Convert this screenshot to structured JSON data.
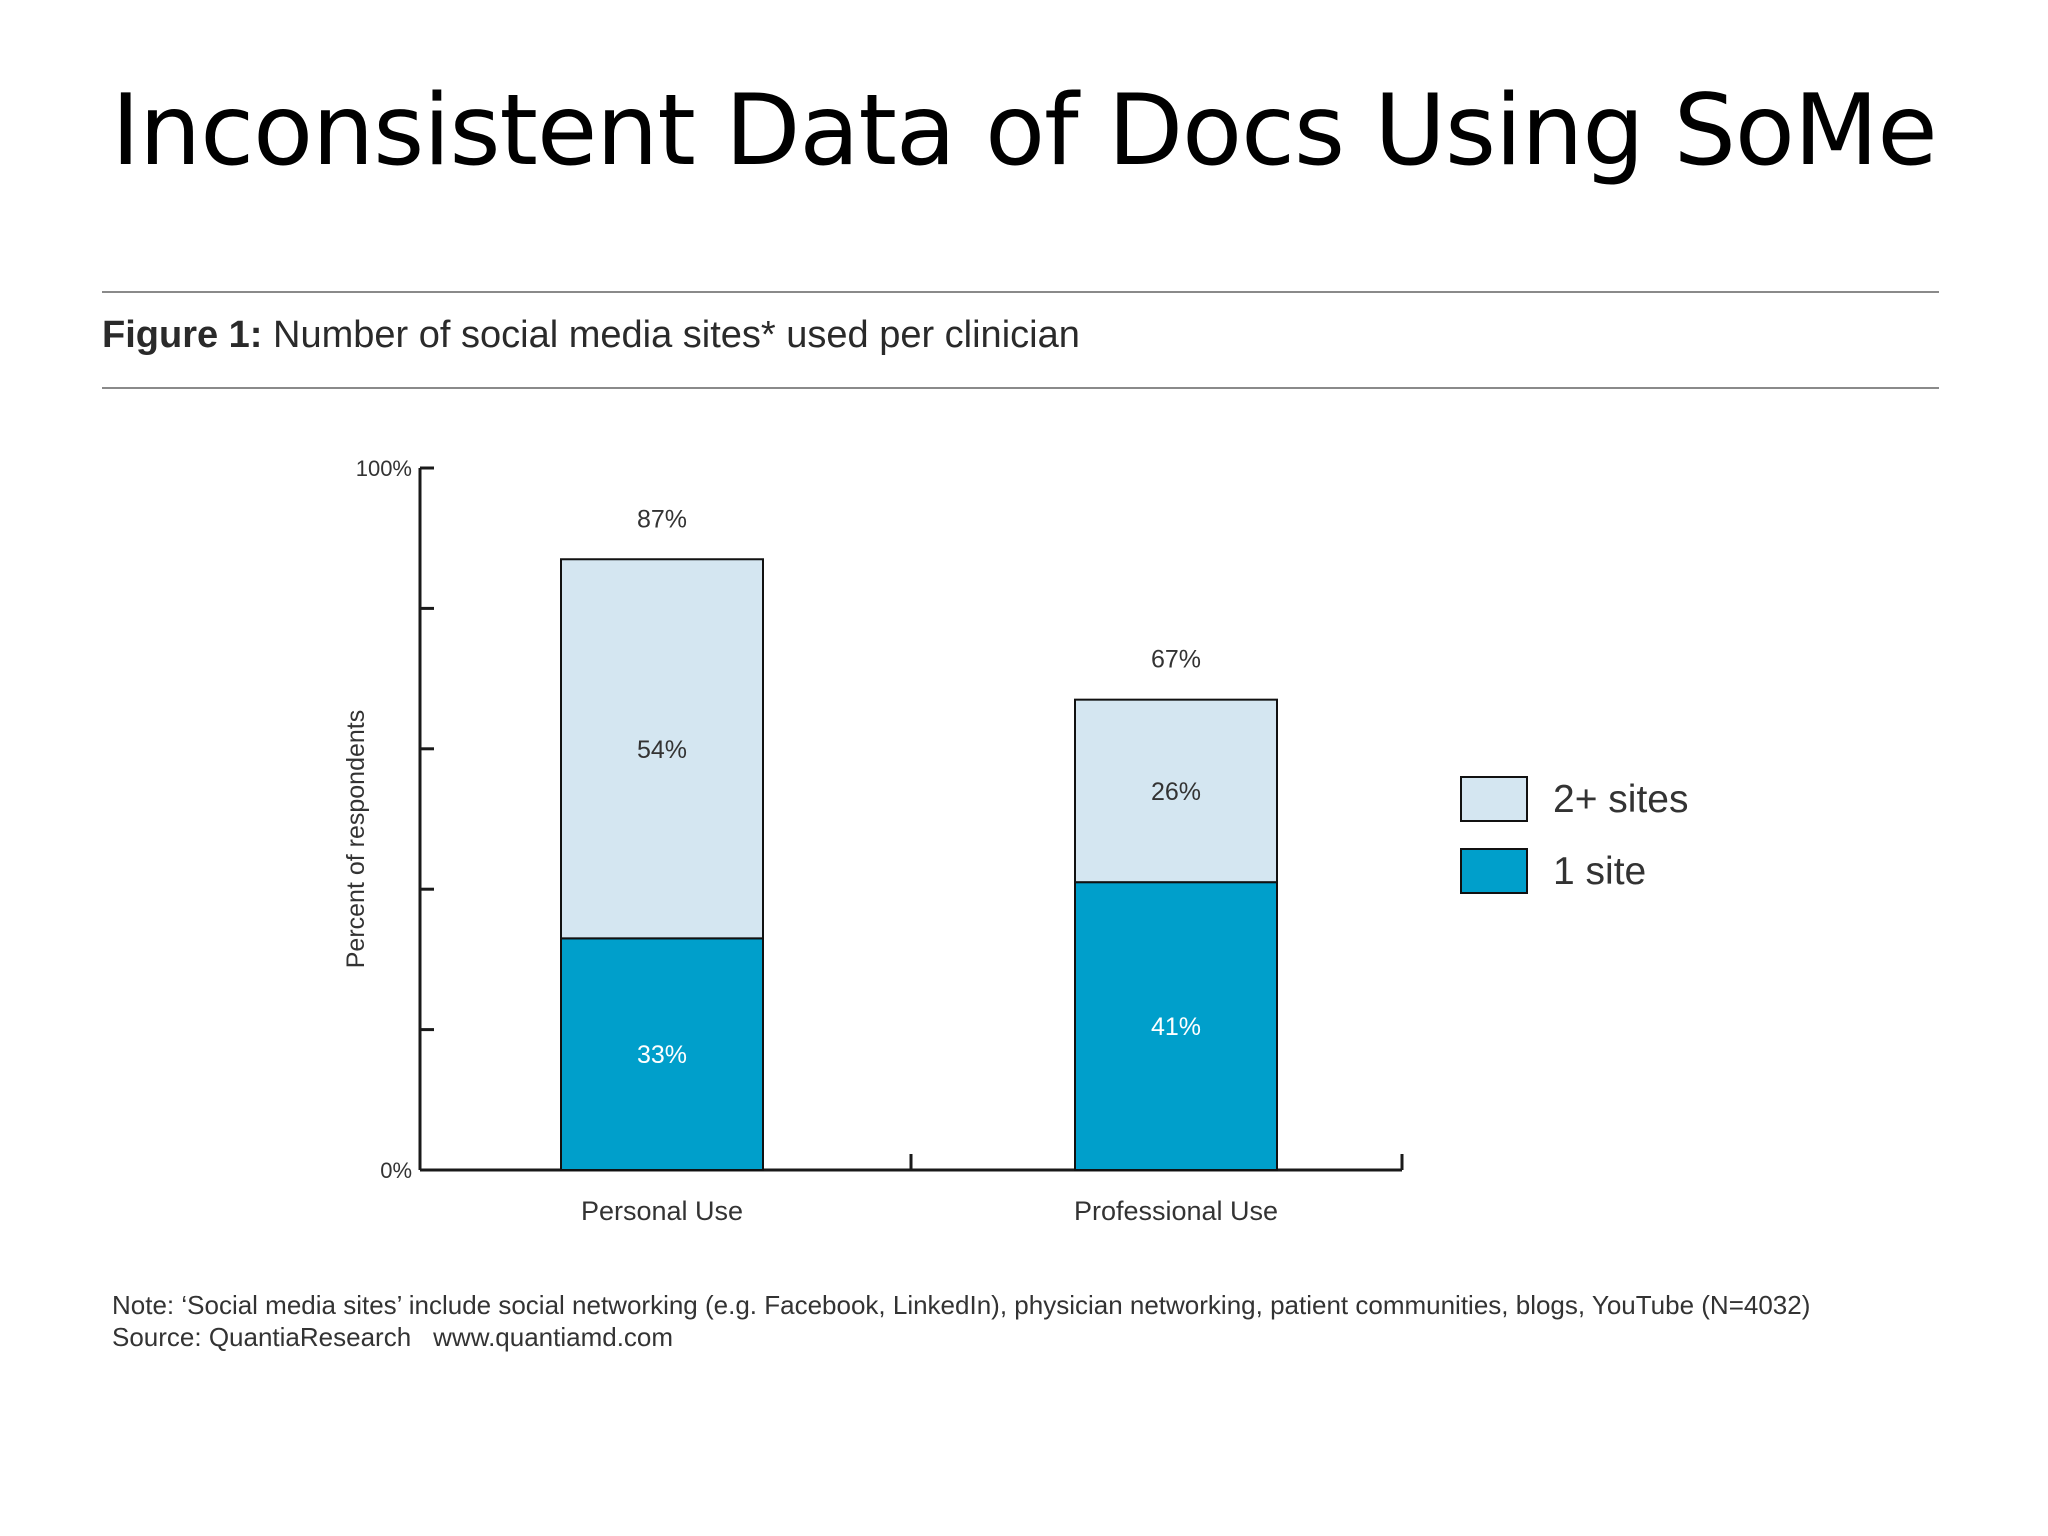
{
  "slide": {
    "title": "Inconsistent Data of Docs Using SoMe"
  },
  "figure": {
    "label": "Figure 1:",
    "caption": "Number of social media sites* used per clinician",
    "note": "Note: ‘Social media sites’ include social networking (e.g. Facebook, LinkedIn), physician networking, patient communities, blogs, YouTube (N=4032)",
    "source": "Source: QuantiaResearch",
    "source_url": "www.quantiamd.com"
  },
  "colors": {
    "one_site": "#009fcb",
    "two_plus_sites": "#d4e6f1",
    "bar_outline": "#111111",
    "axis": "#1a1a1a",
    "text": "#333333"
  },
  "chart_data": {
    "type": "bar",
    "stacked": true,
    "categories": [
      "Personal Use",
      "Professional Use"
    ],
    "series": [
      {
        "name": "1 site",
        "values": [
          33,
          41
        ],
        "labels": [
          "33%",
          "41%"
        ],
        "color": "#009fcb"
      },
      {
        "name": "2+ sites",
        "values": [
          54,
          26
        ],
        "labels": [
          "54%",
          "26%"
        ],
        "color": "#d4e6f1"
      }
    ],
    "totals": [
      87,
      67
    ],
    "total_labels": [
      "87%",
      "67%"
    ],
    "ylabel": "Percent of respondents",
    "xlabel": "",
    "ylim": [
      0,
      100
    ],
    "yticks": [
      0,
      20,
      40,
      60,
      80,
      100
    ],
    "ytick_labels": [
      "0%",
      "",
      "",
      "",
      "",
      "100%"
    ],
    "legend_order": [
      "2+ sites",
      "1 site"
    ],
    "legend_position": "right",
    "grid": false
  }
}
